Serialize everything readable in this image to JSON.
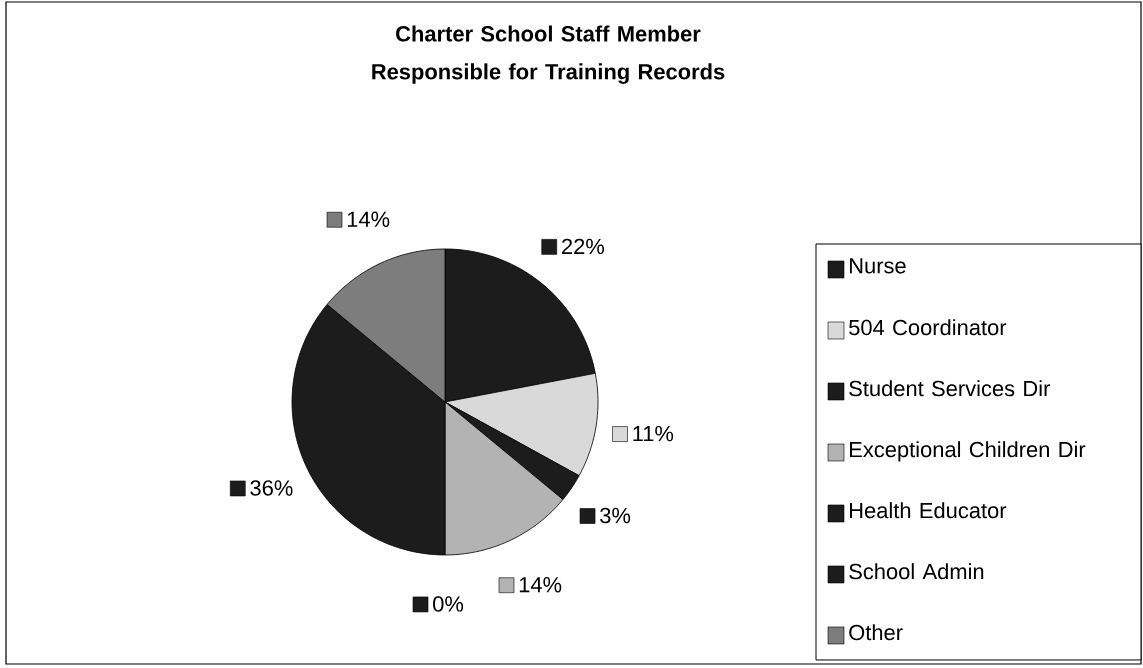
{
  "chart_data": {
    "type": "pie",
    "title": "Charter School Staff Member Responsible for Training Records",
    "categories": [
      "Nurse",
      "504 Coordinator",
      "Student Services Dir",
      "Exceptional Children Dir",
      "Health Educator",
      "School Admin",
      "Other"
    ],
    "values": [
      22,
      11,
      3,
      14,
      0,
      36,
      14
    ],
    "colors": [
      "#1c1c1c",
      "#d9d9d9",
      "#1c1c1c",
      "#b3b3b3",
      "#1c1c1c",
      "#1c1c1c",
      "#7d7d7d"
    ],
    "value_labels": [
      "22%",
      "11%",
      "3%",
      "14%",
      "0%",
      "36%",
      "14%"
    ],
    "legend": "right"
  }
}
